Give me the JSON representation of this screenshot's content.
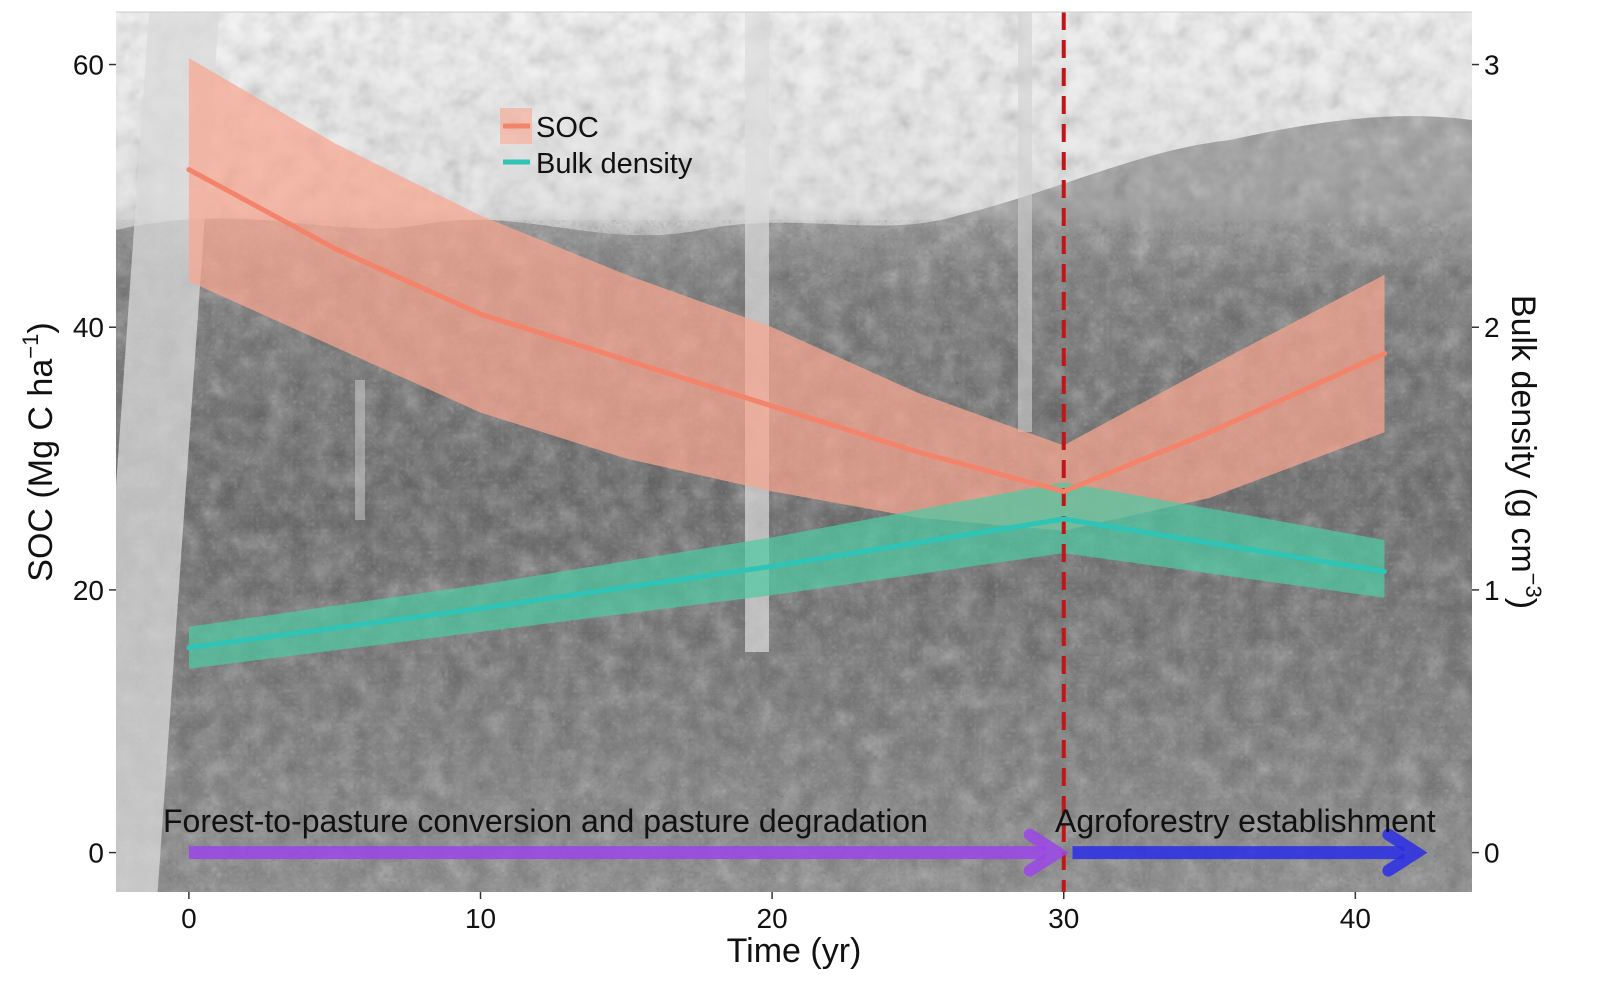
{
  "chart_data": {
    "type": "line",
    "background": "grayscale photograph of tropical forest and agroforestry vegetation",
    "xlabel": "Time (yr)",
    "ylabel_left": "SOC (Mg C ha",
    "ylabel_left_exp": "−1",
    "ylabel_left_close": ")",
    "ylabel_right": "Bulk density (g cm",
    "ylabel_right_exp": "−3",
    "ylabel_right_close": ")",
    "xlim": [
      -2.5,
      44
    ],
    "ylim_left": [
      -3,
      64
    ],
    "ylim_right": [
      -0.15,
      3.2
    ],
    "x_ticks": [
      0,
      10,
      20,
      30,
      40
    ],
    "y_left_ticks": [
      0,
      20,
      40,
      60
    ],
    "y_right_ticks": [
      0,
      1,
      2,
      3
    ],
    "legend_position": "top-left",
    "series": [
      {
        "name": "SOC",
        "axis": "left",
        "color": "#f4836b",
        "band_color": "#f8a690",
        "x": [
          0,
          5,
          10,
          15,
          20,
          25,
          30,
          35,
          41
        ],
        "y": [
          52,
          46,
          41,
          37.5,
          34,
          30.5,
          27.5,
          32,
          38
        ],
        "lower": [
          43.5,
          38.5,
          33.5,
          30,
          27.5,
          25.5,
          24.5,
          27,
          32
        ],
        "upper": [
          60.5,
          54,
          48.5,
          44,
          40,
          35,
          31,
          37,
          44
        ]
      },
      {
        "name": "Bulk density",
        "axis": "right",
        "color": "#2ec4b6",
        "band_color": "#4fc9a4",
        "x": [
          0,
          10,
          20,
          30,
          41
        ],
        "y": [
          0.78,
          0.93,
          1.09,
          1.27,
          1.07
        ],
        "lower": [
          0.7,
          0.84,
          0.98,
          1.14,
          0.97
        ],
        "upper": [
          0.86,
          1.02,
          1.2,
          1.41,
          1.19
        ]
      }
    ],
    "vline": {
      "x": 30,
      "color": "#c0161a",
      "style": "dashed"
    },
    "phases": [
      {
        "label": "Forest-to-pasture conversion and pasture degradation",
        "x_start": 0,
        "x_end": 30,
        "color": "#9b45e8"
      },
      {
        "label": "Agroforestry establishment",
        "x_start": 30.3,
        "x_end": 42.3,
        "color": "#2a2ee6"
      }
    ]
  }
}
